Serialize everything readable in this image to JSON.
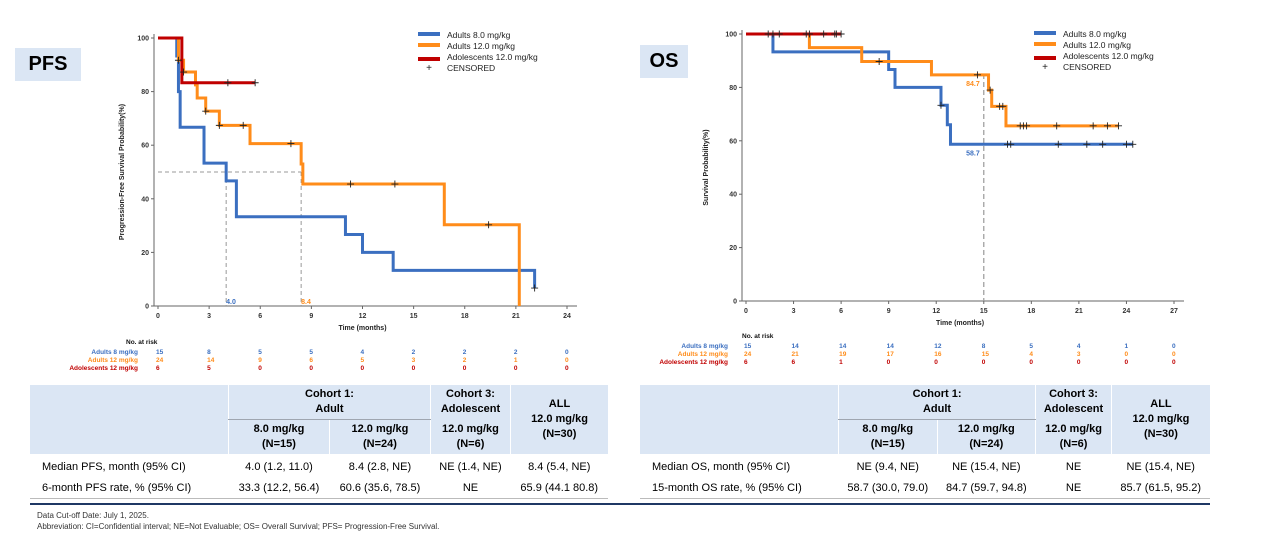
{
  "pfs_panel": {
    "badge": "PFS",
    "table": {
      "header_top": [
        "",
        "Cohort 1:\nAdult",
        "Cohort 3:\nAdolescent",
        "ALL"
      ],
      "header_sub": [
        "8.0 mg/kg\n(N=15)",
        "12.0 mg/kg\n(N=24)",
        "12.0 mg/kg\n(N=6)",
        "12.0 mg/kg\n(N=30)"
      ],
      "rows": [
        {
          "label": "Median PFS, month (95% CI)",
          "values": [
            "4.0 (1.2, 11.0)",
            "8.4 (2.8, NE)",
            "NE (1.4, NE)",
            "8.4 (5.4, NE)"
          ]
        },
        {
          "label": "6-month PFS rate, % (95% CI)",
          "values": [
            "33.3 (12.2, 56.4)",
            "60.6 (35.6, 78.5)",
            "NE",
            "65.9 (44.1 80.8)"
          ]
        }
      ]
    }
  },
  "os_panel": {
    "badge": "OS",
    "table": {
      "header_top": [
        "",
        "Cohort 1:\nAdult",
        "Cohort 3:\nAdolescent",
        "ALL"
      ],
      "header_sub": [
        "8.0 mg/kg\n(N=15)",
        "12.0 mg/kg\n(N=24)",
        "12.0 mg/kg\n(N=6)",
        "12.0 mg/kg\n(N=30)"
      ],
      "rows": [
        {
          "label": "Median OS, month (95% CI)",
          "values": [
            "NE (9.4, NE)",
            "NE (15.4, NE)",
            "NE",
            "NE (15.4, NE)"
          ]
        },
        {
          "label": "15-month OS rate, % (95% CI)",
          "values": [
            "58.7 (30.0, 79.0)",
            "84.7 (59.7, 94.8)",
            "NE",
            "85.7 (61.5, 95.2)"
          ]
        }
      ]
    }
  },
  "footnotes": {
    "cutoff": "Data Cut-off Date: July 1, 2025.",
    "abbrev": "Abbreviation: CI=Confidential interval; NE=Not Evaluable; OS= Overall Survival; PFS= Progression-Free Survival."
  },
  "colors": {
    "adult8": "#3b6fc0",
    "adult12": "#ff8c1a",
    "adol12": "#c00000",
    "ref": "#999999"
  },
  "chart_data": [
    {
      "type": "line",
      "subtype": "kaplan-meier",
      "title": "PFS",
      "xlabel": "Time (months)",
      "ylabel": "Progression-Free Survival Probability(%)",
      "xlim": [
        0,
        24
      ],
      "ylim": [
        0,
        100
      ],
      "xticks": [
        0,
        3,
        6,
        9,
        12,
        15,
        18,
        21,
        24
      ],
      "yticks": [
        0,
        20,
        40,
        60,
        80,
        100
      ],
      "legend": [
        "Adults 8.0 mg/kg",
        "Adults 12.0 mg/kg",
        "Adolescents 12.0 mg/kg",
        "CENSORED"
      ],
      "legend_position": "top-right",
      "reference_y": 50,
      "annotations": [
        {
          "series": "Adults 8.0 mg/kg",
          "x": 4.0,
          "text": "4.0"
        },
        {
          "series": "Adults 12.0 mg/kg",
          "x": 8.4,
          "text": "8.4"
        }
      ],
      "series": [
        {
          "name": "Adults 8.0 mg/kg",
          "key": "adult8",
          "steps": [
            [
              0,
              100
            ],
            [
              1.1,
              93.3
            ],
            [
              1.2,
              80
            ],
            [
              1.3,
              66.7
            ],
            [
              2.7,
              53.3
            ],
            [
              4.0,
              46.7
            ],
            [
              4.6,
              33.3
            ],
            [
              11.0,
              26.7
            ],
            [
              12.0,
              20.0
            ],
            [
              13.8,
              13.3
            ],
            [
              22.1,
              6.7
            ]
          ],
          "end": 22.1,
          "censored": [
            [
              22.1,
              6.7
            ]
          ]
        },
        {
          "name": "Adults 12.0 mg/kg",
          "key": "adult12",
          "steps": [
            [
              0,
              100
            ],
            [
              1.2,
              91.7
            ],
            [
              1.5,
              87.3
            ],
            [
              2.2,
              82.5
            ],
            [
              2.3,
              77.6
            ],
            [
              2.8,
              72.7
            ],
            [
              3.6,
              67.4
            ],
            [
              5.4,
              60.6
            ],
            [
              8.4,
              53.0
            ],
            [
              8.5,
              45.5
            ],
            [
              16.8,
              30.3
            ],
            [
              21.2,
              0
            ]
          ],
          "end": 21.2,
          "censored": [
            [
              1.2,
              91.7
            ],
            [
              1.5,
              87.3
            ],
            [
              2.8,
              72.7
            ],
            [
              3.6,
              67.4
            ],
            [
              5.0,
              67.4
            ],
            [
              7.8,
              60.6
            ],
            [
              11.3,
              45.5
            ],
            [
              13.9,
              45.5
            ],
            [
              19.4,
              30.3
            ]
          ]
        },
        {
          "name": "Adolescents 12.0 mg/kg",
          "key": "adol12",
          "steps": [
            [
              0,
              100
            ],
            [
              1.4,
              83.3
            ]
          ],
          "end": 5.7,
          "censored": [
            [
              4.1,
              83.3
            ],
            [
              5.7,
              83.3
            ]
          ]
        }
      ],
      "at_risk": {
        "label": "No. at risk",
        "times": [
          0,
          3,
          6,
          9,
          12,
          15,
          18,
          21,
          24
        ],
        "rows": [
          {
            "name": "Adults 8 mg/kg",
            "key": "adult8",
            "values": [
              15,
              8,
              5,
              5,
              4,
              2,
              2,
              2,
              0
            ]
          },
          {
            "name": "Adults 12 mg/kg",
            "key": "adult12",
            "values": [
              24,
              14,
              9,
              6,
              5,
              3,
              2,
              1,
              0
            ]
          },
          {
            "name": "Adolescents 12 mg/kg",
            "key": "adol12",
            "values": [
              6,
              5,
              0,
              0,
              0,
              0,
              0,
              0,
              0
            ]
          }
        ]
      }
    },
    {
      "type": "line",
      "subtype": "kaplan-meier",
      "title": "OS",
      "xlabel": "Time (months)",
      "ylabel": "Survival Probability(%)",
      "xlim": [
        0,
        27
      ],
      "ylim": [
        0,
        100
      ],
      "xticks": [
        0,
        3,
        6,
        9,
        12,
        15,
        18,
        21,
        24,
        27
      ],
      "yticks": [
        0,
        20,
        40,
        60,
        80,
        100
      ],
      "legend": [
        "Adults 8.0 mg/kg",
        "Adults 12.0 mg/kg",
        "Adolescents 12.0 mg/kg",
        "CENSORED"
      ],
      "legend_position": "top-right",
      "reference_x": 15,
      "annotations": [
        {
          "series": "Adults 12.0 mg/kg",
          "x": 15,
          "y": 84.7,
          "text": "84.7"
        },
        {
          "series": "Adults 8.0 mg/kg",
          "x": 15,
          "y": 58.7,
          "text": "58.7"
        }
      ],
      "series": [
        {
          "name": "Adults 8.0 mg/kg",
          "key": "adult8",
          "steps": [
            [
              0,
              100
            ],
            [
              1.7,
              93.3
            ],
            [
              9.0,
              86.7
            ],
            [
              9.4,
              80.0
            ],
            [
              12.3,
              73.3
            ],
            [
              12.7,
              66.0
            ],
            [
              12.9,
              58.7
            ]
          ],
          "end": 24.4,
          "censored": [
            [
              12.3,
              73.3
            ],
            [
              16.5,
              58.7
            ],
            [
              16.7,
              58.7
            ],
            [
              19.7,
              58.7
            ],
            [
              21.5,
              58.7
            ],
            [
              22.5,
              58.7
            ],
            [
              24.0,
              58.7
            ],
            [
              24.4,
              58.7
            ]
          ]
        },
        {
          "name": "Adults 12.0 mg/kg",
          "key": "adult12",
          "steps": [
            [
              0,
              100
            ],
            [
              4.0,
              94.9
            ],
            [
              7.3,
              89.7
            ],
            [
              11.7,
              84.7
            ],
            [
              15.3,
              79.0
            ],
            [
              15.5,
              72.9
            ],
            [
              16.4,
              65.6
            ]
          ],
          "end": 23.5,
          "censored": [
            [
              8.4,
              89.7
            ],
            [
              14.6,
              84.7
            ],
            [
              15.4,
              79.0
            ],
            [
              16.0,
              72.9
            ],
            [
              16.2,
              72.9
            ],
            [
              17.3,
              65.6
            ],
            [
              17.5,
              65.6
            ],
            [
              17.7,
              65.6
            ],
            [
              19.6,
              65.6
            ],
            [
              21.9,
              65.6
            ],
            [
              22.8,
              65.6
            ],
            [
              23.5,
              65.6
            ]
          ]
        },
        {
          "name": "Adolescents 12.0 mg/kg",
          "key": "adol12",
          "steps": [
            [
              0,
              100
            ]
          ],
          "end": 6.0,
          "censored": [
            [
              1.4,
              100
            ],
            [
              1.7,
              100
            ],
            [
              2.1,
              100
            ],
            [
              3.8,
              100
            ],
            [
              4.0,
              100
            ],
            [
              4.9,
              100
            ],
            [
              5.6,
              100
            ],
            [
              5.7,
              100
            ],
            [
              6.0,
              100
            ]
          ]
        }
      ],
      "at_risk": {
        "label": "No. at risk",
        "times": [
          0,
          3,
          6,
          9,
          12,
          15,
          18,
          21,
          24,
          27
        ],
        "rows": [
          {
            "name": "Adults 8 mg/kg",
            "key": "adult8",
            "values": [
              15,
              14,
              14,
              14,
              12,
              8,
              5,
              4,
              1,
              0
            ]
          },
          {
            "name": "Adults 12 mg/kg",
            "key": "adult12",
            "values": [
              24,
              21,
              19,
              17,
              16,
              15,
              4,
              3,
              0,
              0
            ]
          },
          {
            "name": "Adolescents 12 mg/kg",
            "key": "adol12",
            "values": [
              6,
              6,
              1,
              0,
              0,
              0,
              0,
              0,
              0,
              0
            ]
          }
        ]
      }
    }
  ]
}
